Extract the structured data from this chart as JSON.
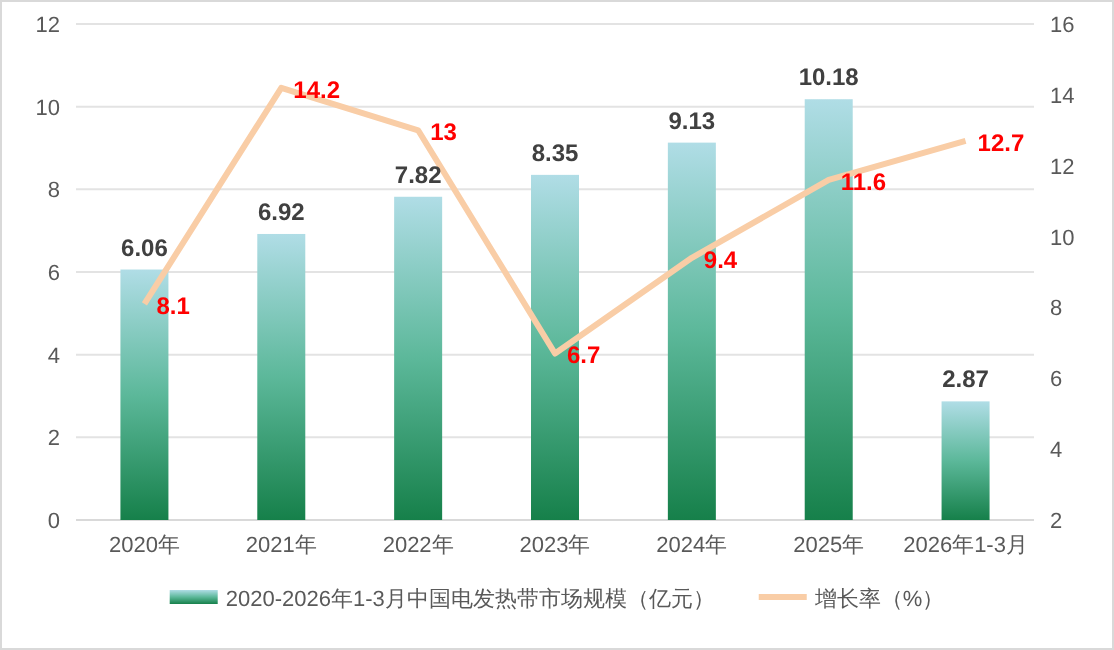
{
  "chart_data": {
    "type": "bar",
    "categories": [
      "2020年",
      "2021年",
      "2022年",
      "2023年",
      "2024年",
      "2025年",
      "2026年1-3月"
    ],
    "series": [
      {
        "name": "2020-2026年1-3月中国电发热带市场规模（亿元）",
        "color": "#5cb89a",
        "values": [
          6.06,
          6.92,
          7.82,
          8.35,
          9.13,
          10.18,
          2.87
        ]
      },
      {
        "name": "增长率（%）",
        "type": "line",
        "axis": "y2",
        "color": "#f9cda6",
        "values": [
          8.1,
          14.2,
          13,
          6.7,
          9.4,
          11.6,
          12.7
        ]
      }
    ],
    "ylim": [
      0,
      12
    ],
    "yticks": [
      0,
      2,
      4,
      6,
      8,
      10,
      12
    ],
    "y2lim": [
      2,
      16
    ],
    "y2ticks": [
      2,
      4,
      6,
      8,
      10,
      12,
      14,
      16
    ],
    "grid": "y",
    "legend": "bottom",
    "data_labels": true
  }
}
